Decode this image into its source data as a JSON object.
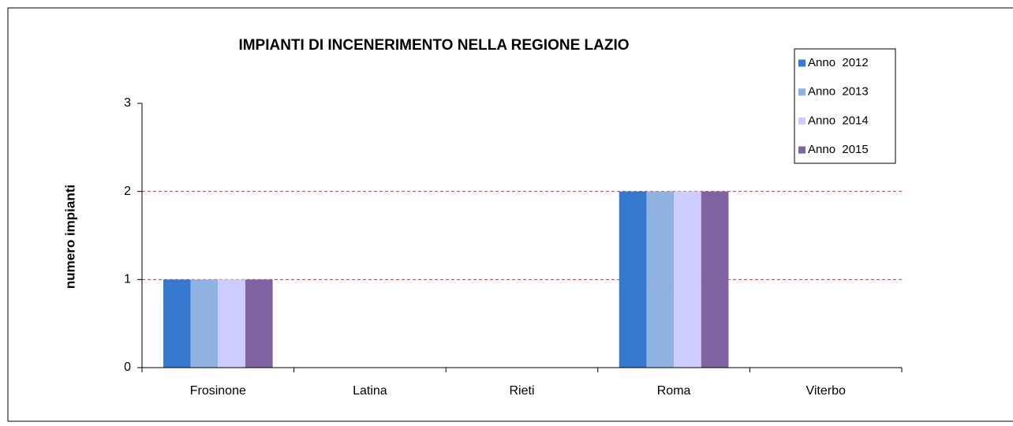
{
  "chart_data": {
    "type": "bar",
    "title": "IMPIANTI DI INCENERIMENTO NELLA REGIONE LAZIO",
    "y_label": "numero impianti",
    "categories": [
      "Frosinone",
      "Latina",
      "Rieti",
      "Roma",
      "Viterbo"
    ],
    "series": [
      {
        "name": "Anno  2012",
        "color": "#3478d0",
        "values": [
          1,
          0,
          0,
          2,
          0
        ]
      },
      {
        "name": "Anno  2013",
        "color": "#8fb2e0",
        "values": [
          1,
          0,
          0,
          2,
          0
        ]
      },
      {
        "name": "Anno  2014",
        "color": "#ccccff",
        "values": [
          1,
          0,
          0,
          2,
          0
        ]
      },
      {
        "name": "Anno  2015",
        "color": "#8064a2",
        "values": [
          1,
          0,
          0,
          2,
          0
        ]
      }
    ],
    "ylim": [
      0,
      3
    ],
    "yticks": [
      0,
      1,
      2,
      3
    ],
    "grid": true,
    "grid_color": "#e03030",
    "legend": "top-right"
  }
}
